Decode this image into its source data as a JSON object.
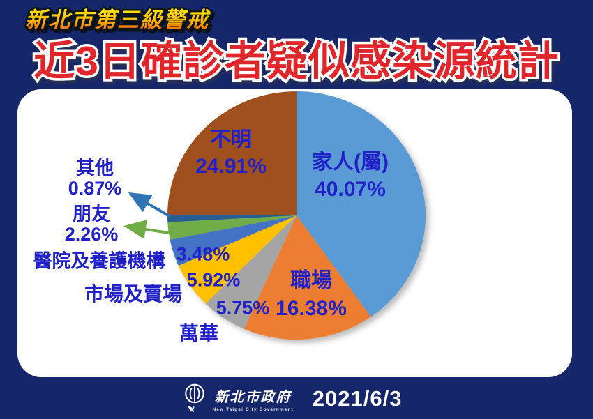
{
  "page": {
    "alert_badge": "新北市第三級警戒",
    "title": "近3日確診者疑似感染源統計",
    "background_color": "#16266B",
    "title_color": "#E0262B",
    "badge_gradient": [
      "#FFEB00",
      "#FFB300",
      "#EF5A0D"
    ]
  },
  "chart_data": {
    "type": "pie",
    "title": "近3日確診者疑似感染源統計",
    "values_unit": "percent",
    "direction": "clockwise",
    "start_angle_deg": 0,
    "label_color": "#2021C8",
    "slices": [
      {
        "label": "家人(屬)",
        "value": 40.07,
        "pct_text": "40.07%",
        "color": "#5B9BD5",
        "label_placement": "inside"
      },
      {
        "label": "職場",
        "value": 16.38,
        "pct_text": "16.38%",
        "color": "#ED7D31",
        "label_placement": "inside"
      },
      {
        "label": "萬華",
        "value": 5.75,
        "pct_text": "5.75%",
        "color": "#A5A5A5",
        "label_placement": "outside"
      },
      {
        "label": "市場及賣場",
        "value": 5.92,
        "pct_text": "5.92%",
        "color": "#FFC000",
        "label_placement": "outside"
      },
      {
        "label": "醫院及養護機構",
        "value": 3.48,
        "pct_text": "3.48%",
        "color": "#4472C4",
        "label_placement": "outside"
      },
      {
        "label": "朋友",
        "value": 2.26,
        "pct_text": "2.26%",
        "color": "#70AD47",
        "label_placement": "outside"
      },
      {
        "label": "其他",
        "value": 0.87,
        "pct_text": "0.87%",
        "color": "#255E91",
        "label_placement": "outside"
      },
      {
        "label": "不明",
        "value": 24.91,
        "pct_text": "24.91%",
        "color": "#A0501C",
        "label_placement": "inside"
      }
    ],
    "annotations": {
      "other_arrow_color": "#2E75B6",
      "friend_arrow_color": "#70AD47"
    }
  },
  "footer": {
    "org_name": "新北市政府",
    "org_name_en": "New Taipei City Government",
    "date": "2021/6/3"
  }
}
